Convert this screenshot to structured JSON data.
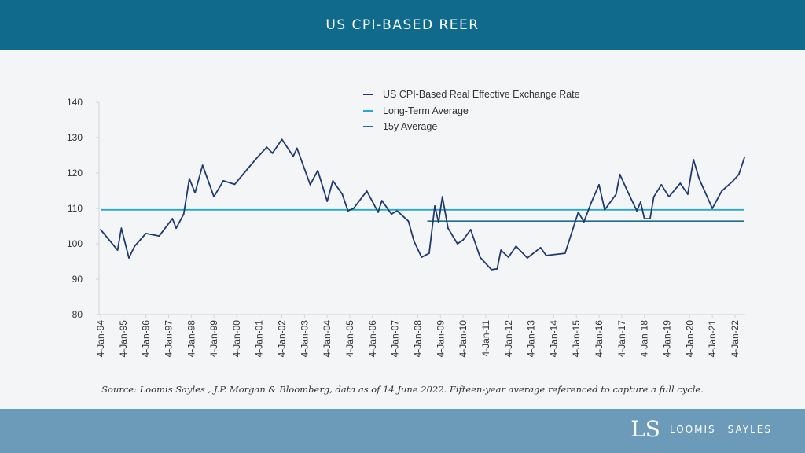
{
  "header": {
    "title": "US CPI-BASED REER"
  },
  "footer": {
    "source": "Source: Loomis Sayles , J.P. Morgan & Bloomberg, data as of 14 June 2022. Fifteen-year average referenced to capture a full cycle.",
    "logo_left": "LOOMIS",
    "logo_right": "SAYLES"
  },
  "colors": {
    "header": "#0f6a8c",
    "footer": "#6c9bba",
    "series": "#1f3a6e",
    "long_term_average": "#2aa8c8",
    "fifteen_year_average": "#1f6d8c"
  },
  "chart_data": {
    "type": "line",
    "title": "US CPI-BASED REER",
    "xlabel": "",
    "ylabel": "",
    "ylim": [
      80,
      140
    ],
    "yticks": [
      80,
      90,
      100,
      110,
      120,
      130,
      140
    ],
    "xticks": [
      "4-Jan-94",
      "4-Jan-95",
      "4-Jan-96",
      "4-Jan-97",
      "4-Jan-98",
      "4-Jan-99",
      "4-Jan-00",
      "4-Jan-01",
      "4-Jan-02",
      "4-Jan-03",
      "4-Jan-04",
      "4-Jan-05",
      "4-Jan-06",
      "4-Jan-07",
      "4-Jan-08",
      "4-Jan-09",
      "4-Jan-10",
      "4-Jan-11",
      "4-Jan-12",
      "4-Jan-13",
      "4-Jan-14",
      "4-Jan-15",
      "4-Jan-16",
      "4-Jan-17",
      "4-Jan-18",
      "4-Jan-19",
      "4-Jan-20",
      "4-Jan-21",
      "4-Jan-22"
    ],
    "grid": false,
    "legend_position": "top-center",
    "series": [
      {
        "name": "US CPI-Based Real Effective Exchange Rate",
        "x": [
          "1994-01",
          "1994-10",
          "1994-12",
          "1995-04",
          "1995-07",
          "1996-01",
          "1996-08",
          "1997-03",
          "1997-05",
          "1997-09",
          "1997-12",
          "1998-03",
          "1998-07",
          "1999-01",
          "1999-06",
          "1999-12",
          "2000-05",
          "2000-11",
          "2001-05",
          "2001-08",
          "2002-01",
          "2002-07",
          "2002-09",
          "2003-04",
          "2003-08",
          "2004-01",
          "2004-04",
          "2004-09",
          "2004-12",
          "2005-03",
          "2005-10",
          "2006-04",
          "2006-06",
          "2006-11",
          "2007-02",
          "2007-08",
          "2007-11",
          "2008-03",
          "2008-07",
          "2008-10",
          "2008-12",
          "2009-02",
          "2009-05",
          "2009-10",
          "2010-01",
          "2010-05",
          "2010-10",
          "2011-04",
          "2011-07",
          "2011-09",
          "2012-01",
          "2012-05",
          "2012-11",
          "2013-06",
          "2013-09",
          "2014-07",
          "2015-02",
          "2015-05",
          "2015-09",
          "2016-01",
          "2016-04",
          "2016-10",
          "2016-12",
          "2017-04",
          "2017-09",
          "2017-11",
          "2018-01",
          "2018-04",
          "2018-06",
          "2018-10",
          "2019-02",
          "2019-08",
          "2019-12",
          "2020-03",
          "2020-06",
          "2021-01",
          "2021-06",
          "2021-12",
          "2022-03",
          "2022-06"
        ],
        "values": [
          104,
          98.2,
          104.4,
          96,
          99.3,
          102.9,
          102.2,
          107.1,
          104.4,
          108.4,
          118.4,
          114.4,
          122.2,
          113.3,
          117.8,
          116.8,
          120,
          123.8,
          127.3,
          125.6,
          129.5,
          124.7,
          127,
          116.7,
          120.7,
          112,
          117.8,
          114,
          109.3,
          110,
          114.9,
          108.9,
          112.2,
          108.4,
          109.3,
          106.4,
          100.7,
          96.2,
          97.3,
          110.7,
          106,
          113.3,
          104.4,
          100,
          101.1,
          104,
          96.2,
          92.7,
          92.9,
          98.2,
          96.2,
          99.3,
          96,
          98.9,
          96.7,
          97.3,
          108.9,
          106.2,
          111.8,
          116.7,
          109.6,
          114,
          119.6,
          114.9,
          109.3,
          111.8,
          107.1,
          107.1,
          113.3,
          116.7,
          113.3,
          117.1,
          114,
          123.8,
          118.4,
          110,
          114.9,
          117.8,
          119.6,
          124.4
        ]
      },
      {
        "name": "Long-Term Average",
        "x": [
          "1994-01",
          "2022-06"
        ],
        "values": [
          109.6,
          109.6
        ]
      },
      {
        "name": "15y Average",
        "x": [
          "2008-06",
          "2022-06"
        ],
        "values": [
          106.4,
          106.4
        ]
      }
    ]
  }
}
